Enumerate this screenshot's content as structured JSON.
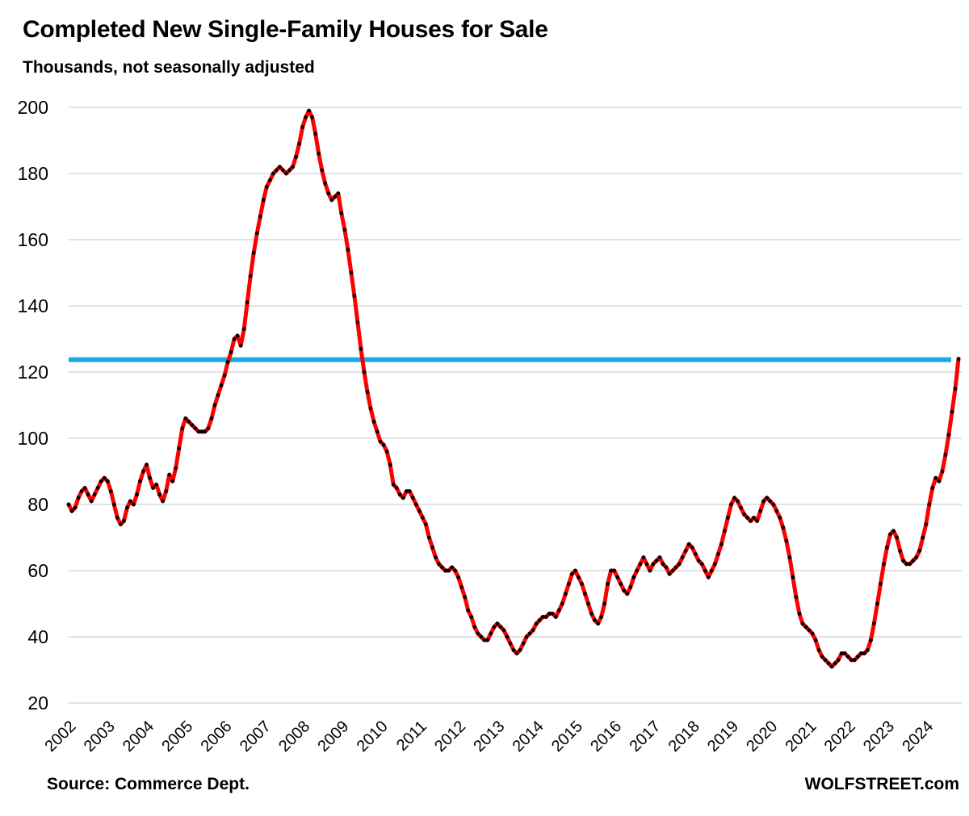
{
  "header": {
    "title": "Completed New Single-Family Houses for Sale",
    "subtitle": "Thousands, not seasonally adjusted"
  },
  "footer": {
    "source": "Source: Commerce Dept.",
    "brand": "WOLFSTREET.com"
  },
  "colors": {
    "series_line": "#fe0000",
    "series_marker": "#000000",
    "reference_line": "#1ca9e4",
    "gridline": "#d9d9d9",
    "text": "#000000",
    "background": "#ffffff"
  },
  "chart_data": {
    "type": "line",
    "title": "Completed New Single-Family Houses for Sale",
    "subtitle": "Thousands, not seasonally adjusted",
    "ylabel": "Thousands",
    "xlabel": "",
    "ylim": [
      20,
      200
    ],
    "yticks": [
      200,
      180,
      160,
      140,
      120,
      100,
      80,
      60,
      40,
      20
    ],
    "grid": true,
    "legend": "none",
    "x_start_month": "2002-01",
    "x_end_month": "2024-11",
    "xtick_years": [
      2002,
      2003,
      2004,
      2005,
      2006,
      2007,
      2008,
      2009,
      2010,
      2011,
      2012,
      2013,
      2014,
      2015,
      2016,
      2017,
      2018,
      2019,
      2020,
      2021,
      2022,
      2023,
      2024
    ],
    "reference_line": {
      "value": 124,
      "style": "horizontal"
    },
    "series": [
      {
        "name": "Completed new single-family houses for sale",
        "frequency": "monthly",
        "marker": "dot",
        "monthly_values": [
          80,
          78,
          79,
          82,
          84,
          85,
          83,
          81,
          83,
          85,
          87,
          88,
          87,
          84,
          80,
          76,
          74,
          75,
          79,
          81,
          80,
          83,
          87,
          90,
          92,
          88,
          85,
          86,
          83,
          81,
          84,
          89,
          87,
          91,
          97,
          103,
          106,
          105,
          104,
          103,
          102,
          102,
          102,
          103,
          106,
          110,
          113,
          116,
          119,
          123,
          126,
          130,
          131,
          128,
          133,
          141,
          149,
          156,
          162,
          167,
          172,
          176,
          178,
          180,
          181,
          182,
          181,
          180,
          181,
          182,
          185,
          189,
          194,
          197,
          199,
          197,
          192,
          186,
          181,
          177,
          174,
          172,
          173,
          174,
          168,
          163,
          157,
          150,
          143,
          135,
          127,
          120,
          114,
          109,
          105,
          102,
          99,
          98,
          96,
          92,
          86,
          85,
          83,
          82,
          84,
          84,
          82,
          80,
          78,
          76,
          74,
          70,
          67,
          64,
          62,
          61,
          60,
          60,
          61,
          60,
          58,
          55,
          52,
          48,
          46,
          43,
          41,
          40,
          39,
          39,
          41,
          43,
          44,
          43,
          42,
          40,
          38,
          36,
          35,
          36,
          38,
          40,
          41,
          42,
          44,
          45,
          46,
          46,
          47,
          47,
          46,
          48,
          50,
          53,
          56,
          59,
          60,
          58,
          56,
          53,
          50,
          47,
          45,
          44,
          46,
          50,
          56,
          60,
          60,
          58,
          56,
          54,
          53,
          55,
          58,
          60,
          62,
          64,
          62,
          60,
          62,
          63,
          64,
          62,
          61,
          59,
          60,
          61,
          62,
          64,
          66,
          68,
          67,
          65,
          63,
          62,
          60,
          58,
          60,
          62,
          65,
          68,
          72,
          76,
          80,
          82,
          81,
          79,
          77,
          76,
          75,
          76,
          75,
          78,
          81,
          82,
          81,
          80,
          78,
          76,
          73,
          69,
          64,
          58,
          52,
          47,
          44,
          43,
          42,
          41,
          39,
          36,
          34,
          33,
          32,
          31,
          32,
          33,
          35,
          35,
          34,
          33,
          33,
          34,
          35,
          35,
          36,
          39,
          44,
          50,
          56,
          62,
          67,
          71,
          72,
          70,
          66,
          63,
          62,
          62,
          63,
          64,
          66,
          70,
          74,
          80,
          85,
          88,
          87,
          90,
          95,
          101,
          108,
          115,
          124
        ]
      }
    ]
  }
}
